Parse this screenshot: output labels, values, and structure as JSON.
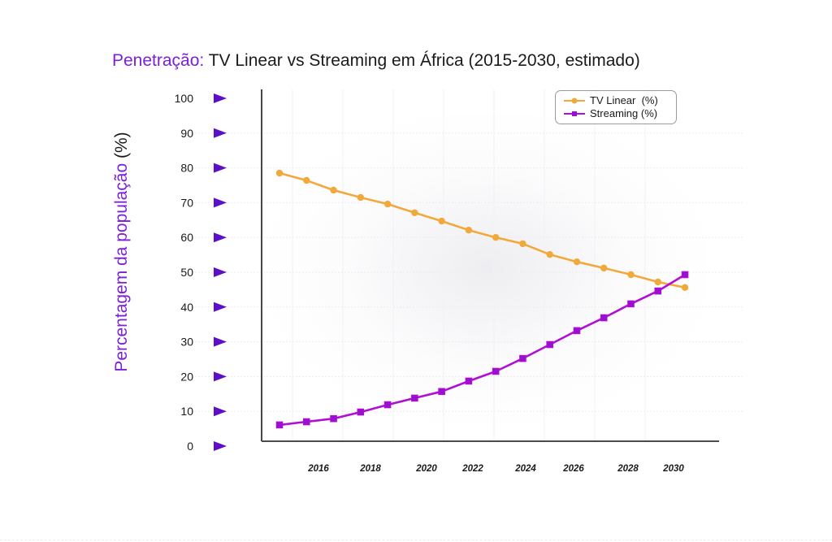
{
  "chart_data": {
    "type": "line",
    "title_accent": "Penetração:",
    "title_rest": " TV Linear vs Streaming em África (2015-2030, estimado)",
    "ylabel_main": "Percentagem da população ",
    "ylabel_unit": "(%)",
    "xlabel": "",
    "x": [
      2015,
      2016,
      2017,
      2018,
      2019,
      2020,
      2021,
      2022,
      2023,
      2024,
      2025,
      2026,
      2027,
      2028,
      2029,
      2030
    ],
    "x_tick_labels": [
      "2016",
      "2018",
      "2020",
      "2022",
      "2024",
      "2026",
      "2028",
      "2030"
    ],
    "y_tick_labels": [
      "100",
      "90",
      "80",
      "70",
      "60",
      "50",
      "40",
      "30",
      "20",
      "10",
      "0"
    ],
    "ylim": [
      0,
      100
    ],
    "grid": true,
    "legend_position": "top-right",
    "series": [
      {
        "name": "TV Linear  (%)",
        "color": "#f2a93b",
        "marker": "circle",
        "values": [
          78.5,
          76.4,
          73.6,
          71.5,
          69.6,
          67.1,
          64.7,
          62.1,
          60.0,
          58.2,
          55.1,
          53.0,
          51.2,
          49.3,
          47.2,
          45.6
        ]
      },
      {
        "name": "Streaming (%)",
        "color": "#b10fd4",
        "marker": "square",
        "values": [
          6.1,
          7.0,
          7.9,
          9.8,
          11.9,
          13.8,
          15.7,
          18.7,
          21.5,
          25.2,
          29.2,
          33.2,
          36.9,
          40.9,
          44.6,
          49.3
        ]
      }
    ]
  },
  "colors": {
    "accent_purple": "#7b1fd8",
    "arrow_purple": "#5b0fc9",
    "axis": "#333333"
  }
}
